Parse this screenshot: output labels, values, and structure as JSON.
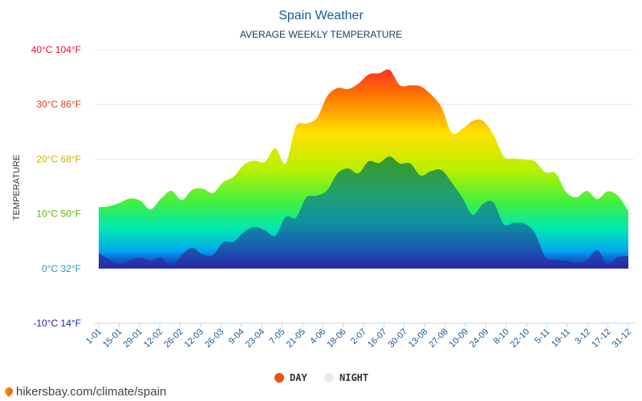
{
  "chart_data": {
    "type": "area",
    "title": "Spain Weather",
    "subtitle": "AVERAGE WEEKLY TEMPERATURE",
    "ylabel": "TEMPERATURE",
    "ylim": [
      -10,
      40
    ],
    "yticks": [
      {
        "value": 40,
        "label": "40°C 104°F",
        "color": "#e8102a"
      },
      {
        "value": 30,
        "label": "30°C 86°F",
        "color": "#e03c10"
      },
      {
        "value": 20,
        "label": "20°C 68°F",
        "color": "#c8b400"
      },
      {
        "value": 10,
        "label": "10°C 50°F",
        "color": "#5ab800"
      },
      {
        "value": 0,
        "label": "0°C 32°F",
        "color": "#1a9ad0"
      },
      {
        "value": -10,
        "label": "-10°C 14°F",
        "color": "#2020b0"
      }
    ],
    "x_tick_labels": [
      "1-01",
      "15-01",
      "29-01",
      "12-02",
      "26-02",
      "12-03",
      "26-03",
      "9-04",
      "23-04",
      "7-05",
      "21-05",
      "4-06",
      "18-06",
      "2-07",
      "16-07",
      "30-07",
      "13-08",
      "27-08",
      "10-09",
      "24-09",
      "8-10",
      "22-10",
      "5-11",
      "19-11",
      "3-12",
      "17-12",
      "31-12"
    ],
    "series": [
      {
        "name": "DAY",
        "legend_color": "#f05010",
        "values": [
          11.2,
          11.4,
          12,
          12.8,
          12.4,
          10.8,
          12.8,
          14.2,
          12.5,
          14.4,
          14.6,
          13.8,
          15.8,
          16.8,
          19,
          19.7,
          19.5,
          22,
          19.2,
          26,
          26.5,
          27.5,
          31.5,
          33,
          32.8,
          33.8,
          35.5,
          35.7,
          36.3,
          33.5,
          33.5,
          33.3,
          31.8,
          29.5,
          24.8,
          25.5,
          27,
          27,
          24.5,
          20.5,
          20.1,
          19.9,
          19.6,
          17.6,
          17.4,
          14,
          13,
          14.2,
          12.7,
          14.1,
          13.3,
          10.5
        ]
      },
      {
        "name": "NIGHT",
        "legend_color": "#e6ecf2",
        "values": [
          2.8,
          1.7,
          0.6,
          1.5,
          2,
          1.4,
          2,
          0.3,
          2.5,
          3.8,
          2.6,
          2.5,
          4.8,
          4.9,
          6.7,
          7.6,
          7,
          6,
          9.4,
          9.3,
          13,
          13.3,
          14.3,
          17.4,
          18.3,
          17.4,
          19.6,
          19.3,
          20.5,
          19.2,
          19.2,
          17,
          17.8,
          18,
          15.7,
          13,
          9.8,
          11.8,
          12.1,
          8.1,
          8.4,
          8.2,
          6.5,
          2.1,
          1.6,
          1.4,
          1,
          1.5,
          3.4,
          0.7,
          2.1,
          2.3
        ]
      }
    ],
    "source": "hikersbay.com/climate/spain"
  }
}
